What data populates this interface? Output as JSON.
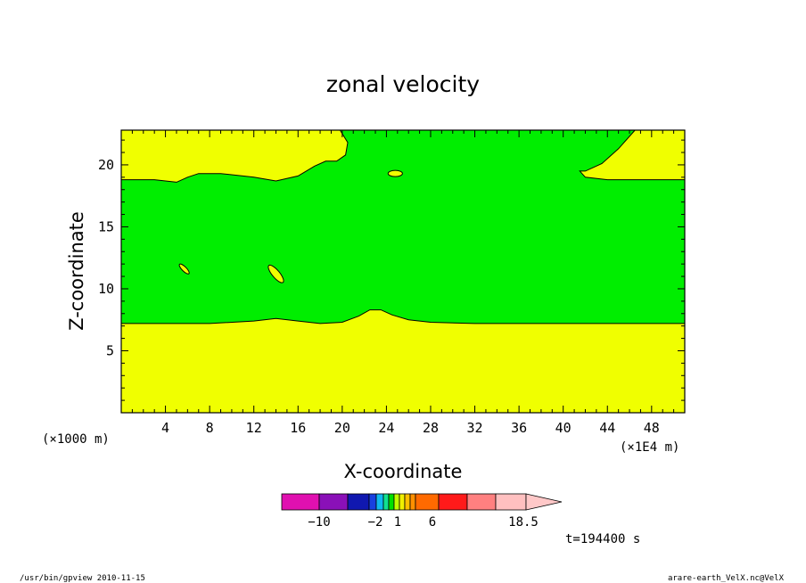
{
  "chart_data": {
    "type": "heatmap",
    "title": "zonal velocity",
    "xlabel": "X-coordinate",
    "ylabel": "Z-coordinate",
    "x_unit_left": "(×1000 m)",
    "x_unit_right": "(×1E4 m)",
    "xlim": [
      0,
      51
    ],
    "ylim": [
      0,
      22.8
    ],
    "x_ticks": [
      4,
      8,
      12,
      16,
      20,
      24,
      28,
      32,
      36,
      40,
      44,
      48
    ],
    "y_ticks": [
      5,
      10,
      15,
      20
    ],
    "time_label": "t=194400 s",
    "colorbar": {
      "labels": [
        "−10",
        "−2",
        "1",
        "6",
        "18.5"
      ],
      "colors": [
        "#e010b0",
        "#8a10b8",
        "#1018b0",
        "#1840e0",
        "#10b8f0",
        "#10e090",
        "#00e000",
        "#c0ff00",
        "#f0f000",
        "#ffc000",
        "#ff9000",
        "#ff6a00",
        "#ff1a1a",
        "#ff8080",
        "#ffc0c0",
        "#ffc8c8"
      ]
    },
    "regions": [
      {
        "name": "upper-yellow",
        "color": "#f0ff00",
        "range": "1 to 6"
      },
      {
        "name": "middle-green",
        "color": "#00ee00",
        "range": "-2 to 1"
      },
      {
        "name": "lower-yellow",
        "color": "#f0ff00",
        "range": "1 to 6"
      }
    ],
    "boundaries": {
      "lower": [
        [
          0,
          7.2
        ],
        [
          8,
          7.2
        ],
        [
          12,
          7.4
        ],
        [
          14,
          7.6
        ],
        [
          16,
          7.4
        ],
        [
          18,
          7.2
        ],
        [
          20,
          7.3
        ],
        [
          21.5,
          7.8
        ],
        [
          22.5,
          8.3
        ],
        [
          23.5,
          8.3
        ],
        [
          24.5,
          7.9
        ],
        [
          26,
          7.5
        ],
        [
          28,
          7.3
        ],
        [
          32,
          7.2
        ],
        [
          40,
          7.2
        ],
        [
          51,
          7.2
        ]
      ],
      "upper": [
        [
          0,
          18.8
        ],
        [
          3,
          18.8
        ],
        [
          5,
          18.6
        ],
        [
          6,
          19.0
        ],
        [
          7,
          19.3
        ],
        [
          9,
          19.3
        ],
        [
          12,
          19.0
        ],
        [
          14,
          18.7
        ],
        [
          16,
          19.1
        ],
        [
          17.5,
          19.9
        ],
        [
          18.5,
          20.3
        ],
        [
          19.5,
          20.3
        ],
        [
          20.3,
          20.8
        ],
        [
          20.5,
          21.8
        ],
        [
          19.8,
          22.8
        ]
      ],
      "upper_right": [
        [
          46.5,
          22.8
        ],
        [
          45,
          21.3
        ],
        [
          43.5,
          20.1
        ],
        [
          42,
          19.5
        ],
        [
          41.5,
          19.5
        ],
        [
          42,
          19.0
        ],
        [
          44,
          18.8
        ],
        [
          51,
          18.8
        ]
      ]
    },
    "islands": [
      {
        "x": 24.8,
        "z": 19.3,
        "rx": 0.65,
        "rz": 0.25,
        "angle": 0
      },
      {
        "x": 14,
        "z": 11.2,
        "rx": 1.0,
        "rz": 0.3,
        "angle": 50
      },
      {
        "x": 5.7,
        "z": 11.6,
        "rx": 0.6,
        "rz": 0.18,
        "angle": 45
      }
    ]
  },
  "footer": {
    "left": "/usr/bin/gpview   2010-11-15",
    "right": "arare-earth_VelX.nc@VelX"
  }
}
